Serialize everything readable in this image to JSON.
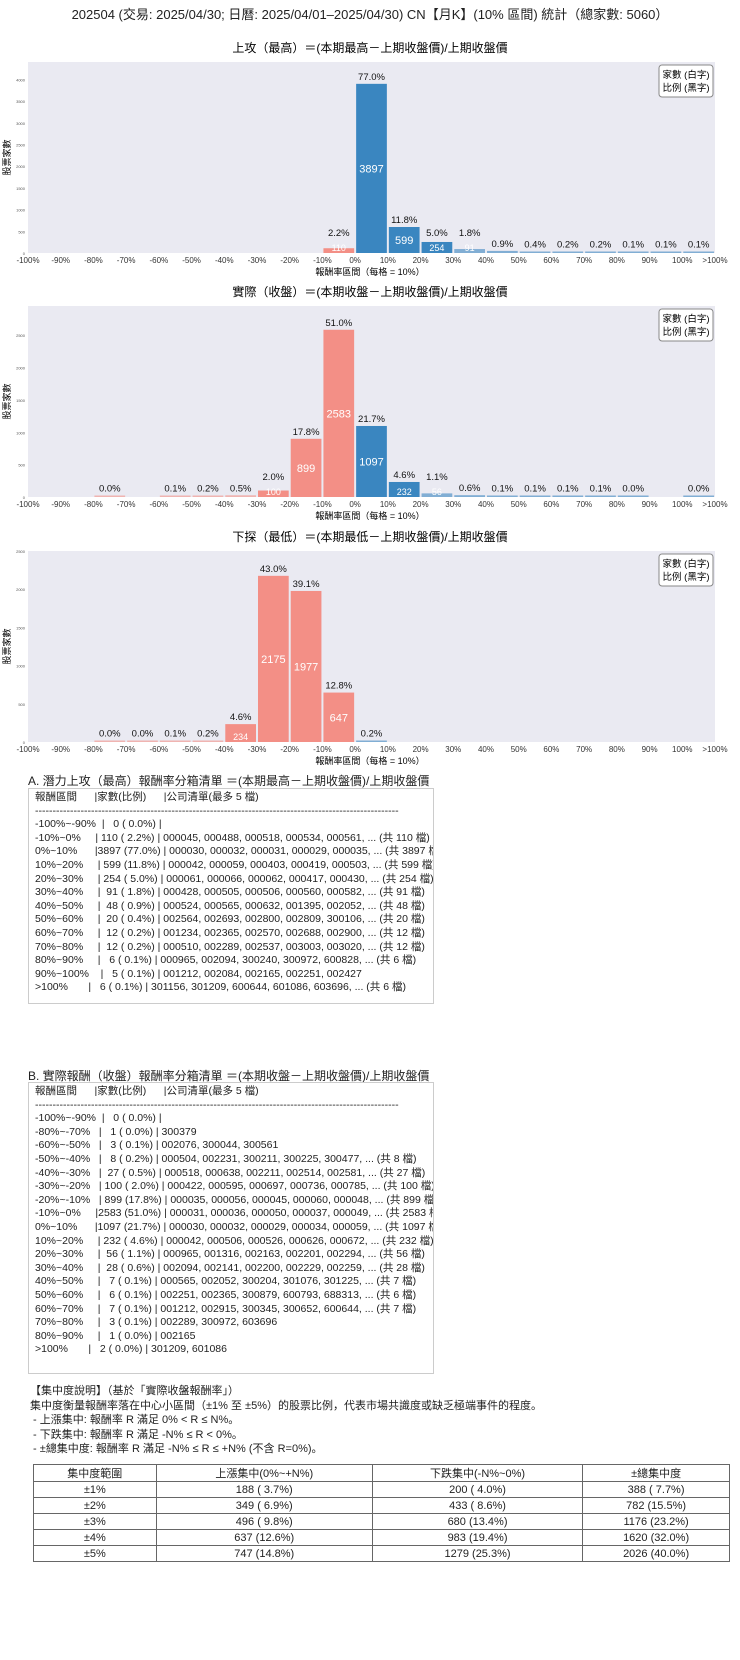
{
  "suptitle": "202504 (交易: 2025/04/30; 日曆: 2025/04/01–2025/04/30) CN【月K】(10% 區間) 統計（總家數: 5060）",
  "colors": {
    "positive": "#3a86c0",
    "negative": "#f38f86",
    "plot_bg": "#eaeaf2"
  },
  "chart_data": [
    {
      "type": "bar",
      "title": "上攻（最高）＝(本期最高－上期收盤價)/上期收盤價",
      "xlabel": "報酬率區間（每格 = 10%）",
      "ylabel": "股票家數",
      "legend": [
        "家數 (白字)",
        "比例 (黑字)"
      ],
      "legend_position": "top-right",
      "ylim": [
        0,
        4400
      ],
      "yticks": [
        0,
        500,
        1000,
        1500,
        2000,
        2500,
        3000,
        3500,
        4000
      ],
      "grid": false,
      "xticks": [
        "-100%",
        "-90%",
        "-80%",
        "-70%",
        "-60%",
        "-50%",
        "-40%",
        "-30%",
        "-20%",
        "-10%",
        "0%",
        "10%",
        "20%",
        "30%",
        "40%",
        "50%",
        "60%",
        "70%",
        "80%",
        "90%",
        "100%",
        ">100%"
      ],
      "values": [
        0,
        0,
        0,
        0,
        0,
        0,
        0,
        0,
        0,
        110,
        3897,
        599,
        254,
        91,
        48,
        20,
        12,
        12,
        6,
        5,
        6
      ],
      "pct_labels": [
        "",
        "",
        "",
        "",
        "",
        "",
        "",
        "",
        "",
        "2.2%",
        "77.0%",
        "11.8%",
        "5.0%",
        "1.8%",
        "0.9%",
        "0.4%",
        "0.2%",
        "0.2%",
        "0.1%",
        "0.1%",
        "0.1%"
      ]
    },
    {
      "type": "bar",
      "title": "實際（收盤）＝(本期收盤－上期收盤價)/上期收盤價",
      "xlabel": "報酬率區間（每格 = 10%）",
      "ylabel": "股票家數",
      "legend": [
        "家數 (白字)",
        "比例 (黑字)"
      ],
      "legend_position": "top-right",
      "ylim": [
        0,
        2950
      ],
      "yticks": [
        0,
        500,
        1000,
        1500,
        2000,
        2500
      ],
      "grid": false,
      "xticks": [
        "-100%",
        "-90%",
        "-80%",
        "-70%",
        "-60%",
        "-50%",
        "-40%",
        "-30%",
        "-20%",
        "-10%",
        "0%",
        "10%",
        "20%",
        "30%",
        "40%",
        "50%",
        "60%",
        "70%",
        "80%",
        "90%",
        "100%",
        ">100%"
      ],
      "values": [
        0,
        0,
        1,
        0,
        3,
        8,
        27,
        100,
        899,
        2583,
        1097,
        232,
        56,
        28,
        7,
        6,
        7,
        3,
        1,
        0,
        2
      ],
      "pct_labels": [
        "",
        "",
        "0.0%",
        "",
        "0.1%",
        "0.2%",
        "0.5%",
        "2.0%",
        "17.8%",
        "51.0%",
        "21.7%",
        "4.6%",
        "1.1%",
        "0.6%",
        "0.1%",
        "0.1%",
        "0.1%",
        "0.1%",
        "0.0%",
        "",
        "0.0%"
      ]
    },
    {
      "type": "bar",
      "title": "下探（最低）＝(本期最低－上期收盤價)/上期收盤價",
      "xlabel": "報酬率區間（每格 = 10%）",
      "ylabel": "股票家數",
      "legend": [
        "家數 (白字)",
        "比例 (黑字)"
      ],
      "legend_position": "top-right",
      "ylim": [
        0,
        2500
      ],
      "yticks": [
        0,
        500,
        1000,
        1500,
        2000,
        2500
      ],
      "grid": false,
      "xticks": [
        "-100%",
        "-90%",
        "-80%",
        "-70%",
        "-60%",
        "-50%",
        "-40%",
        "-30%",
        "-20%",
        "-10%",
        "0%",
        "10%",
        "20%",
        "30%",
        "40%",
        "50%",
        "60%",
        "70%",
        "80%",
        "90%",
        "100%",
        ">100%"
      ],
      "values": [
        0,
        0,
        1,
        1,
        5,
        10,
        234,
        2175,
        1977,
        647,
        10,
        0,
        0,
        0,
        0,
        0,
        0,
        0,
        0,
        0,
        0
      ],
      "pct_labels": [
        "",
        "",
        "0.0%",
        "0.0%",
        "0.1%",
        "0.2%",
        "4.6%",
        "43.0%",
        "39.1%",
        "12.8%",
        "0.2%",
        "",
        "",
        "",
        "",
        "",
        "",
        "",
        "",
        "",
        ""
      ]
    }
  ],
  "section_a": {
    "title": "A. 潛力上攻（最高）報酬率分箱清單 ＝(本期最高－上期收盤價)/上期收盤價",
    "lines": [
      "報酬區間      |家數(比例)      |公司清單(最多 5 檔)",
      "--------------------------------------------------------------------------------------------------------",
      "-100%~-90%  |   0 ( 0.0%) |",
      "-10%~0%     | 110 ( 2.2%) | 000045, 000488, 000518, 000534, 000561, ... (共 110 檔)",
      "0%~10%      |3897 (77.0%) | 000030, 000032, 000031, 000029, 000035, ... (共 3897 檔)",
      "10%~20%     | 599 (11.8%) | 000042, 000059, 000403, 000419, 000503, ... (共 599 檔)",
      "20%~30%     | 254 ( 5.0%) | 000061, 000066, 000062, 000417, 000430, ... (共 254 檔)",
      "30%~40%     |  91 ( 1.8%) | 000428, 000505, 000506, 000560, 000582, ... (共 91 檔)",
      "40%~50%     |  48 ( 0.9%) | 000524, 000565, 000632, 001395, 002052, ... (共 48 檔)",
      "50%~60%     |  20 ( 0.4%) | 002564, 002693, 002800, 002809, 300106, ... (共 20 檔)",
      "60%~70%     |  12 ( 0.2%) | 001234, 002365, 002570, 002688, 002900, ... (共 12 檔)",
      "70%~80%     |  12 ( 0.2%) | 000510, 002289, 002537, 003003, 003020, ... (共 12 檔)",
      "80%~90%     |   6 ( 0.1%) | 000965, 002094, 300240, 300972, 600828, ... (共 6 檔)",
      "90%~100%    |   5 ( 0.1%) | 001212, 002084, 002165, 002251, 002427",
      ">100%       |   6 ( 0.1%) | 301156, 301209, 600644, 601086, 603696, ... (共 6 檔)"
    ]
  },
  "section_b": {
    "title": "B. 實際報酬（收盤）報酬率分箱清單 ＝(本期收盤－上期收盤價)/上期收盤價",
    "lines": [
      "報酬區間      |家數(比例)      |公司清單(最多 5 檔)",
      "--------------------------------------------------------------------------------------------------------",
      "-100%~-90%  |   0 ( 0.0%) |",
      "-80%~-70%   |   1 ( 0.0%) | 300379",
      "-60%~-50%   |   3 ( 0.1%) | 002076, 300044, 300561",
      "-50%~-40%   |   8 ( 0.2%) | 000504, 002231, 300211, 300225, 300477, ... (共 8 檔)",
      "-40%~-30%   |  27 ( 0.5%) | 000518, 000638, 002211, 002514, 002581, ... (共 27 檔)",
      "-30%~-20%   | 100 ( 2.0%) | 000422, 000595, 000697, 000736, 000785, ... (共 100 檔)",
      "-20%~-10%   | 899 (17.8%) | 000035, 000056, 000045, 000060, 000048, ... (共 899 檔)",
      "-10%~0%     |2583 (51.0%) | 000031, 000036, 000050, 000037, 000049, ... (共 2583 檔)",
      "0%~10%      |1097 (21.7%) | 000030, 000032, 000029, 000034, 000059, ... (共 1097 檔)",
      "10%~20%     | 232 ( 4.6%) | 000042, 000506, 000526, 000626, 000672, ... (共 232 檔)",
      "20%~30%     |  56 ( 1.1%) | 000965, 001316, 002163, 002201, 002294, ... (共 56 檔)",
      "30%~40%     |  28 ( 0.6%) | 002094, 002141, 002200, 002229, 002259, ... (共 28 檔)",
      "40%~50%     |   7 ( 0.1%) | 000565, 002052, 300204, 301076, 301225, ... (共 7 檔)",
      "50%~60%     |   6 ( 0.1%) | 002251, 002365, 300879, 600793, 688313, ... (共 6 檔)",
      "60%~70%     |   7 ( 0.1%) | 001212, 002915, 300345, 300652, 600644, ... (共 7 檔)",
      "70%~80%     |   3 ( 0.1%) | 002289, 300972, 603696",
      "80%~90%     |   1 ( 0.0%) | 002165",
      ">100%       |   2 ( 0.0%) | 301209, 601086"
    ]
  },
  "notes": [
    "【集中度說明】（基於「實際收盤報酬率」）",
    "集中度衡量報酬率落在中心小區間（±1% 至 ±5%）的股票比例，代表市場共識度或缺乏極端事件的程度。",
    " - 上漲集中: 報酬率 R 滿足 0% < R ≤ N%。",
    " - 下跌集中: 報酬率 R 滿足 -N% ≤ R < 0%。",
    " - ±總集中度: 報酬率 R 滿足 -N% ≤ R ≤ +N% (不含 R=0%)。"
  ],
  "concentration": {
    "headers": [
      "集中度範圍",
      "上漲集中(0%~+N%)",
      "下跌集中(-N%~0%)",
      "±總集中度"
    ],
    "rows": [
      [
        "±1%",
        "188 ( 3.7%)",
        "200 ( 4.0%)",
        "388 ( 7.7%)"
      ],
      [
        "±2%",
        "349 ( 6.9%)",
        "433 ( 8.6%)",
        "782 (15.5%)"
      ],
      [
        "±3%",
        "496 ( 9.8%)",
        "680 (13.4%)",
        "1176 (23.2%)"
      ],
      [
        "±4%",
        "637 (12.6%)",
        "983 (19.4%)",
        "1620 (32.0%)"
      ],
      [
        "±5%",
        "747 (14.8%)",
        "1279 (25.3%)",
        "2026 (40.0%)"
      ]
    ]
  }
}
